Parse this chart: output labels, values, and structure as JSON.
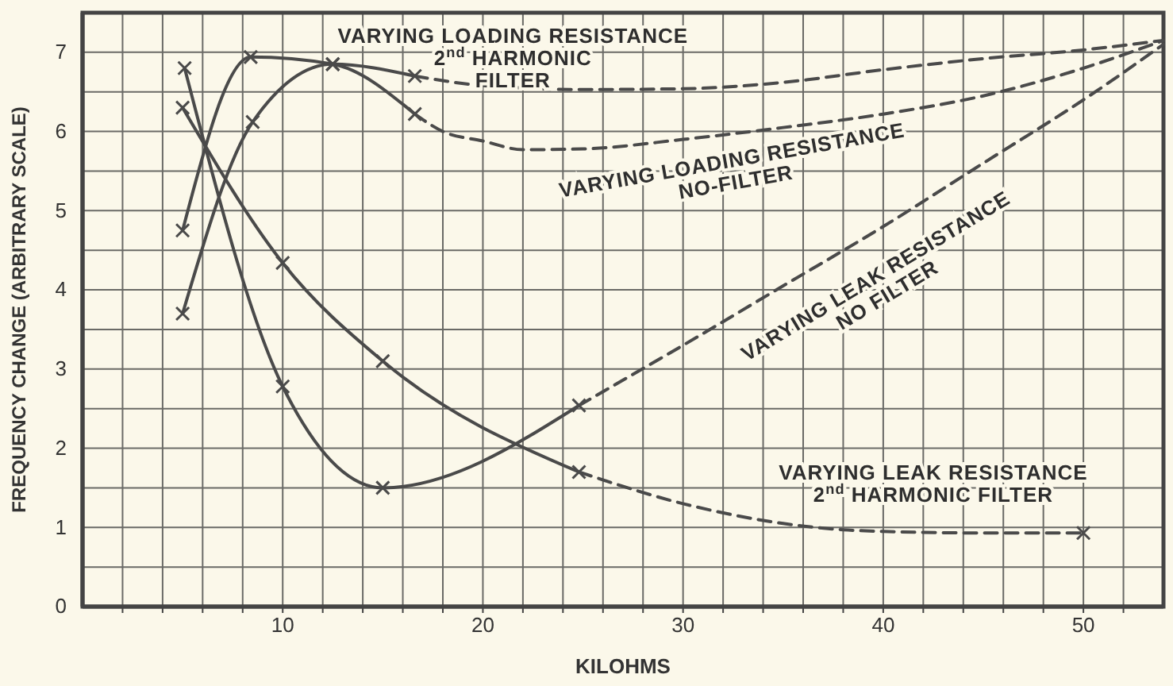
{
  "chart_data": {
    "type": "line",
    "xlabel": "KILOHMS",
    "ylabel": "FREQUENCY CHANGE (ARBITRARY SCALE)",
    "xlim": [
      0,
      54
    ],
    "ylim": [
      0,
      7.5
    ],
    "xticks": [
      {
        "value": 2,
        "label": null
      },
      {
        "value": 4,
        "label": null
      },
      {
        "value": 6,
        "label": null
      },
      {
        "value": 8,
        "label": null
      },
      10,
      {
        "value": 12,
        "label": null
      },
      {
        "value": 14,
        "label": null
      },
      {
        "value": 16,
        "label": null
      },
      {
        "value": 18,
        "label": null
      },
      20,
      {
        "value": 22,
        "label": null
      },
      {
        "value": 24,
        "label": null
      },
      {
        "value": 26,
        "label": null
      },
      {
        "value": 28,
        "label": null
      },
      30,
      {
        "value": 32,
        "label": null
      },
      {
        "value": 34,
        "label": null
      },
      {
        "value": 36,
        "label": null
      },
      {
        "value": 38,
        "label": null
      },
      40,
      {
        "value": 42,
        "label": null
      },
      {
        "value": 44,
        "label": null
      },
      {
        "value": 46,
        "label": null
      },
      {
        "value": 48,
        "label": null
      },
      50,
      {
        "value": 52,
        "label": null
      }
    ],
    "yticks": [
      0,
      {
        "value": 0.5,
        "label": null
      },
      1,
      {
        "value": 1.5,
        "label": null
      },
      2,
      {
        "value": 2.5,
        "label": null
      },
      3,
      {
        "value": 3.5,
        "label": null
      },
      4,
      {
        "value": 4.5,
        "label": null
      },
      5,
      {
        "value": 5.5,
        "label": null
      },
      6,
      {
        "value": 6.5,
        "label": null
      },
      7
    ],
    "grid": true,
    "series": [
      {
        "color": "#4a4a4a",
        "marker": "cross",
        "line_style": "solid",
        "x": [
          5,
          8.4,
          12.5,
          16.6
        ],
        "values": [
          4.75,
          6.94,
          6.85,
          6.22
        ]
      },
      {
        "name": "VARYING LOADING RESISTANCE NO-FILTER",
        "color": "#4a4a4a",
        "marker": "none",
        "line_style": "dashed",
        "x": [
          16.6,
          18,
          20,
          22,
          25,
          30,
          35,
          40,
          45,
          50,
          54
        ],
        "values": [
          6.22,
          6.0,
          5.88,
          5.77,
          5.78,
          5.9,
          6.05,
          6.22,
          6.45,
          6.8,
          7.15
        ]
      },
      {
        "color": "#4a4a4a",
        "marker": "cross",
        "line_style": "solid",
        "x": [
          5,
          8.5,
          12.5,
          16.6
        ],
        "values": [
          3.7,
          6.12,
          6.85,
          6.7
        ]
      },
      {
        "name": "VARYING LOADING RESISTANCE 2$^{nd}$ HARMONIC FILTER",
        "color": "#4a4a4a",
        "marker": "none",
        "line_style": "dashed",
        "x": [
          16.6,
          20,
          25,
          30,
          35,
          40,
          45,
          50,
          54
        ],
        "values": [
          6.7,
          6.58,
          6.53,
          6.54,
          6.62,
          6.78,
          6.92,
          7.03,
          7.15
        ]
      },
      {
        "color": "#4a4a4a",
        "marker": "cross",
        "line_style": "solid",
        "x": [
          5.1,
          10,
          15,
          24.8
        ],
        "values": [
          6.8,
          2.78,
          1.5,
          2.54
        ]
      },
      {
        "name": "VARYING LEAK RESISTANCE NO FILTER",
        "color": "#4a4a4a",
        "marker": "none",
        "line_style": "dashed",
        "x": [
          24.8,
          30,
          35,
          40,
          45,
          50,
          54
        ],
        "values": [
          2.54,
          3.3,
          4.05,
          4.8,
          5.6,
          6.4,
          7.1
        ]
      },
      {
        "color": "#4a4a4a",
        "marker": "cross",
        "line_style": "solid",
        "x": [
          5,
          10,
          15,
          24.8
        ],
        "values": [
          6.3,
          4.34,
          3.1,
          1.7
        ]
      },
      {
        "name": "VARYING LEAK RESISTANCE 2$^{nd}$ HARMONIC FILTER",
        "color": "#4a4a4a",
        "marker": "none",
        "line_style": "dashed",
        "x": [
          24.8,
          30,
          35,
          38,
          40,
          45,
          50
        ],
        "values": [
          1.7,
          1.3,
          1.05,
          0.97,
          0.95,
          0.93,
          0.93
        ]
      },
      {
        "type": "scatter",
        "color": "#4a4a4a",
        "marker": "cross",
        "x": [
          50
        ],
        "values": [
          0.93
        ]
      }
    ]
  }
}
